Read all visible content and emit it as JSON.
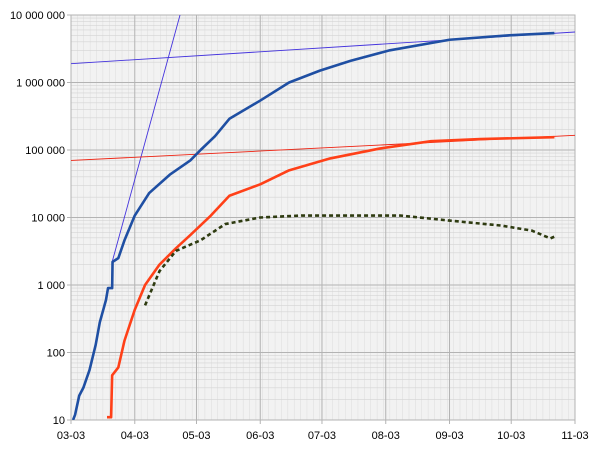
{
  "chart_data": {
    "type": "line",
    "title": "",
    "xlabel": "",
    "ylabel": "",
    "yscale": "log",
    "ylim": [
      10,
      10000000
    ],
    "xlim_days": [
      0,
      245
    ],
    "grid": true,
    "x_tick_labels": [
      "03-03",
      "04-03",
      "05-03",
      "06-03",
      "07-03",
      "08-03",
      "09-03",
      "10-03",
      "11-03"
    ],
    "x_tick_days": [
      0,
      31,
      61,
      92,
      122,
      153,
      184,
      214,
      245
    ],
    "y_tick_labels": [
      "10",
      "100",
      "1 000",
      "10 000",
      "100 000",
      "1 000 000",
      "10 000 000"
    ],
    "y_tick_values": [
      10,
      100,
      1000,
      10000,
      100000,
      1000000,
      10000000
    ],
    "series": [
      {
        "color": "#1f4fa3",
        "style": "solid",
        "points": [
          [
            1,
            10
          ],
          [
            2,
            12
          ],
          [
            4,
            23
          ],
          [
            6,
            30
          ],
          [
            9,
            55
          ],
          [
            12,
            130
          ],
          [
            14,
            280
          ],
          [
            17,
            600
          ],
          [
            18,
            900
          ],
          [
            20,
            900
          ],
          [
            20.2,
            2200
          ],
          [
            23,
            2500
          ],
          [
            26,
            4600
          ],
          [
            31,
            10700
          ],
          [
            38,
            23000
          ],
          [
            48,
            43000
          ],
          [
            58,
            70000
          ],
          [
            63,
            100000
          ],
          [
            70,
            160000
          ],
          [
            77,
            290000
          ],
          [
            92,
            540000
          ],
          [
            106,
            1000000
          ],
          [
            121,
            1500000
          ],
          [
            136,
            2100000
          ],
          [
            155,
            3000000
          ],
          [
            184,
            4300000
          ],
          [
            213,
            5000000
          ],
          [
            235,
            5400000
          ]
        ]
      },
      {
        "color": "#ff4018",
        "style": "solid",
        "points": [
          [
            17.5,
            11
          ],
          [
            19.5,
            11
          ],
          [
            20,
            46
          ],
          [
            23,
            60
          ],
          [
            26,
            150
          ],
          [
            31,
            430
          ],
          [
            36,
            1000
          ],
          [
            43,
            2000
          ],
          [
            51,
            3500
          ],
          [
            58,
            5500
          ],
          [
            68,
            10700
          ],
          [
            77,
            21000
          ],
          [
            92,
            31000
          ],
          [
            106,
            50000
          ],
          [
            126,
            75000
          ],
          [
            150,
            105000
          ],
          [
            175,
            135000
          ],
          [
            199,
            145000
          ],
          [
            235,
            155000
          ]
        ]
      },
      {
        "color": "#2e3b10",
        "style": "dashed",
        "points": [
          [
            36,
            500
          ],
          [
            43,
            1600
          ],
          [
            51,
            3200
          ],
          [
            63,
            4600
          ],
          [
            75,
            8000
          ],
          [
            92,
            10000
          ],
          [
            112,
            10700
          ],
          [
            136,
            10700
          ],
          [
            160,
            10700
          ],
          [
            184,
            9000
          ],
          [
            209,
            7600
          ],
          [
            224,
            6400
          ],
          [
            233,
            4900
          ],
          [
            235,
            5200
          ]
        ]
      }
    ],
    "trendlines": [
      {
        "color": "#4433dd",
        "points": [
          [
            0,
            1900000
          ],
          [
            245,
            5600000
          ]
        ]
      },
      {
        "color": "#4433dd",
        "points": [
          [
            20,
            2200
          ],
          [
            53,
            10000000
          ]
        ]
      },
      {
        "color": "#ee2211",
        "points": [
          [
            0,
            70000
          ],
          [
            245,
            165000
          ]
        ]
      }
    ]
  }
}
